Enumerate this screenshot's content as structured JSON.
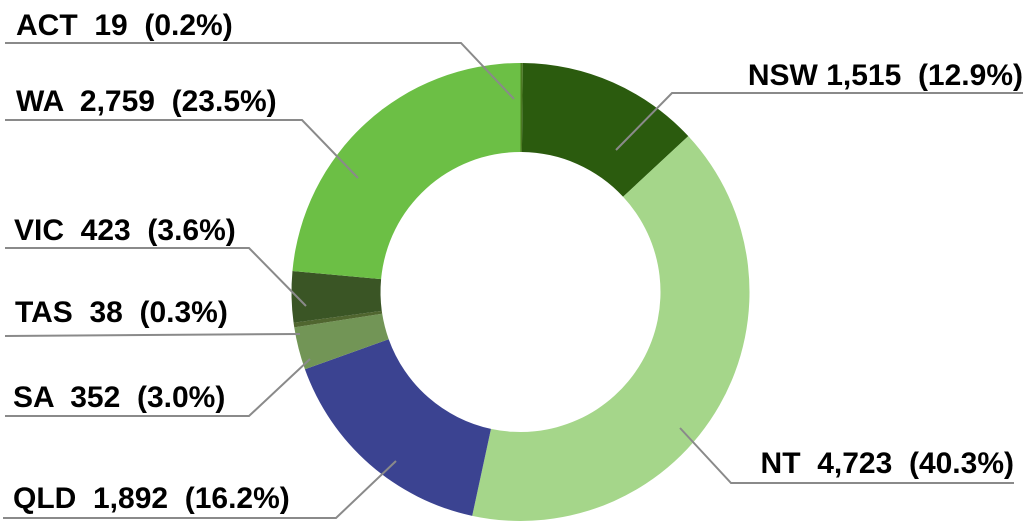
{
  "chart_data": {
    "type": "pie",
    "subtype": "donut",
    "title": "",
    "total": 11721,
    "direction": "clockwise",
    "start_angle_deg": 0,
    "legend_position": "none",
    "leader_line_color": "#8a8a8a",
    "label_text_color": "#000000",
    "categories": [
      "ACT",
      "NSW",
      "NT",
      "QLD",
      "SA",
      "TAS",
      "VIC",
      "WA"
    ],
    "values": [
      19,
      1515,
      4723,
      1892,
      352,
      38,
      423,
      2759
    ],
    "slices": [
      {
        "name": "ACT",
        "value": 19,
        "value_label": "19",
        "pct_label": "0.2%",
        "label": "ACT  19  (0.2%)",
        "color": "#4c7a22"
      },
      {
        "name": "NSW",
        "value": 1515,
        "value_label": "1,515",
        "pct_label": "12.9%",
        "label": "NSW 1,515  (12.9%)",
        "color": "#2b5b0e"
      },
      {
        "name": "NT",
        "value": 4723,
        "value_label": "4,723",
        "pct_label": "40.3%",
        "label": "NT  4,723  (40.3%)",
        "color": "#a5d68a"
      },
      {
        "name": "QLD",
        "value": 1892,
        "value_label": "1,892",
        "pct_label": "16.2%",
        "label": "QLD  1,892  (16.2%)",
        "color": "#3b4391"
      },
      {
        "name": "SA",
        "value": 352,
        "value_label": "352",
        "pct_label": "3.0%",
        "label": "SA  352  (3.0%)",
        "color": "#729556"
      },
      {
        "name": "TAS",
        "value": 38,
        "value_label": "38",
        "pct_label": "0.3%",
        "label": "TAS  38  (0.3%)",
        "color": "#50662f"
      },
      {
        "name": "VIC",
        "value": 423,
        "value_label": "423",
        "pct_label": "3.6%",
        "label": "VIC  423  (3.6%)",
        "color": "#3a5525"
      },
      {
        "name": "WA",
        "value": 2759,
        "value_label": "2,759",
        "pct_label": "23.5%",
        "label": "WA  2,759  (23.5%)",
        "color": "#6cbf45"
      }
    ]
  }
}
